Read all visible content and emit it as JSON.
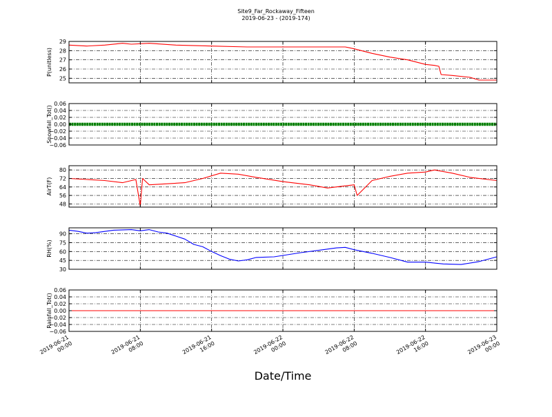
{
  "figure": {
    "title_line1": "Site9_Far_Rockaway_Fifteen",
    "title_line2": "2019-06-23 - (2019-174)",
    "xlabel": "Date/Time"
  },
  "chart_data": [
    {
      "type": "line",
      "ylabel": "P(unitless)",
      "ylim": [
        24.5,
        29.0
      ],
      "yticks": [
        25,
        26,
        27,
        28,
        29
      ],
      "ytick_labels": [
        "25",
        "26",
        "27",
        "28",
        "29"
      ],
      "grid": true,
      "series": [
        {
          "color": "#ff0000",
          "x": [
            "2019-06-21 00:00",
            "2019-06-21 02:00",
            "2019-06-21 04:00",
            "2019-06-21 06:00",
            "2019-06-21 07:00",
            "2019-06-21 09:00",
            "2019-06-21 12:00",
            "2019-06-21 16:00",
            "2019-06-21 20:00",
            "2019-06-22 00:00",
            "2019-06-22 04:00",
            "2019-06-22 07:00",
            "2019-06-22 07:30",
            "2019-06-22 08:00",
            "2019-06-22 10:00",
            "2019-06-22 12:00",
            "2019-06-22 14:00",
            "2019-06-22 16:00",
            "2019-06-22 17:00",
            "2019-06-22 17:30",
            "2019-06-22 17:45",
            "2019-06-22 19:00",
            "2019-06-22 21:00",
            "2019-06-22 22:00",
            "2019-06-23 00:00"
          ],
          "y": [
            28.6,
            28.5,
            28.6,
            28.8,
            28.7,
            28.8,
            28.6,
            28.5,
            28.4,
            28.4,
            28.4,
            28.4,
            28.3,
            28.2,
            27.7,
            27.3,
            27.0,
            26.5,
            26.4,
            26.3,
            25.4,
            25.3,
            25.1,
            24.8,
            24.8
          ]
        }
      ]
    },
    {
      "type": "line",
      "ylabel": "Snowfall_Tot()",
      "ylim": [
        -0.06,
        0.06
      ],
      "yticks": [
        -0.06,
        -0.04,
        -0.02,
        0.0,
        0.02,
        0.04,
        0.06
      ],
      "ytick_labels": [
        "−0.06",
        "−0.04",
        "−0.02",
        "0.00",
        "0.02",
        "0.04",
        "0.06"
      ],
      "grid": true,
      "series": [
        {
          "color": "#008000",
          "marker": "dot",
          "x": [
            "2019-06-21 00:00",
            "2019-06-23 00:00"
          ],
          "y": [
            0,
            0
          ]
        }
      ]
    },
    {
      "type": "line",
      "ylabel": "AirT(F)",
      "ylim": [
        45,
        84
      ],
      "yticks": [
        48,
        56,
        64,
        72,
        80
      ],
      "ytick_labels": [
        "48",
        "56",
        "64",
        "72",
        "80"
      ],
      "grid": true,
      "series": [
        {
          "color": "#ff0000",
          "x": [
            "2019-06-21 00:00",
            "2019-06-21 02:00",
            "2019-06-21 04:00",
            "2019-06-21 06:00",
            "2019-06-21 07:30",
            "2019-06-21 08:00",
            "2019-06-21 08:15",
            "2019-06-21 09:00",
            "2019-06-21 11:00",
            "2019-06-21 13:00",
            "2019-06-21 15:00",
            "2019-06-21 17:00",
            "2019-06-21 19:00",
            "2019-06-21 21:00",
            "2019-06-22 00:00",
            "2019-06-22 03:00",
            "2019-06-22 05:00",
            "2019-06-22 07:00",
            "2019-06-22 08:00",
            "2019-06-22 08:20",
            "2019-06-22 10:00",
            "2019-06-22 12:00",
            "2019-06-22 14:00",
            "2019-06-22 16:00",
            "2019-06-22 17:00",
            "2019-06-22 19:00",
            "2019-06-22 21:00",
            "2019-06-23 00:00"
          ],
          "y": [
            72,
            71,
            70,
            68,
            71,
            46,
            72,
            66,
            67,
            68,
            72,
            77,
            76,
            73,
            69,
            66,
            63,
            65,
            66,
            56,
            70,
            74,
            77,
            78,
            80,
            77,
            73,
            70
          ]
        }
      ]
    },
    {
      "type": "line",
      "ylabel": "RH(%)",
      "ylim": [
        30,
        100
      ],
      "yticks": [
        30,
        45,
        60,
        75,
        90
      ],
      "ytick_labels": [
        "30",
        "45",
        "60",
        "75",
        "90"
      ],
      "grid": true,
      "series": [
        {
          "color": "#0000ff",
          "x": [
            "2019-06-21 00:00",
            "2019-06-21 01:00",
            "2019-06-21 02:00",
            "2019-06-21 03:00",
            "2019-06-21 05:00",
            "2019-06-21 07:00",
            "2019-06-21 08:00",
            "2019-06-21 09:00",
            "2019-06-21 10:00",
            "2019-06-21 11:00",
            "2019-06-21 12:00",
            "2019-06-21 13:00",
            "2019-06-21 14:00",
            "2019-06-21 15:00",
            "2019-06-21 16:00",
            "2019-06-21 17:00",
            "2019-06-21 18:00",
            "2019-06-21 19:00",
            "2019-06-21 20:00",
            "2019-06-21 21:00",
            "2019-06-21 23:00",
            "2019-06-22 02:00",
            "2019-06-22 04:00",
            "2019-06-22 06:00",
            "2019-06-22 07:00",
            "2019-06-22 08:00",
            "2019-06-22 10:00",
            "2019-06-22 12:00",
            "2019-06-22 14:00",
            "2019-06-22 16:00",
            "2019-06-22 18:00",
            "2019-06-22 20:00",
            "2019-06-22 22:00",
            "2019-06-23 00:00"
          ],
          "y": [
            96,
            94,
            91,
            92,
            96,
            97,
            95,
            97,
            93,
            91,
            86,
            81,
            72,
            68,
            60,
            53,
            47,
            44,
            46,
            50,
            51,
            58,
            62,
            66,
            67,
            63,
            57,
            50,
            42,
            42,
            39,
            38,
            43,
            51
          ]
        }
      ]
    },
    {
      "type": "line",
      "ylabel": "Rainfall_Tot()",
      "ylim": [
        -0.06,
        0.06
      ],
      "yticks": [
        -0.06,
        -0.04,
        -0.02,
        0.0,
        0.02,
        0.04,
        0.06
      ],
      "ytick_labels": [
        "−0.06",
        "−0.04",
        "−0.02",
        "0.00",
        "0.02",
        "0.04",
        "0.06"
      ],
      "grid": true,
      "series": [
        {
          "color": "#ff0000",
          "x": [
            "2019-06-21 00:00",
            "2019-06-23 00:00"
          ],
          "y": [
            0,
            0
          ]
        }
      ]
    }
  ],
  "xaxis": {
    "xlim": [
      "2019-06-21 00:00",
      "2019-06-23 00:00"
    ],
    "ticks": [
      {
        "value": "2019-06-21 00:00",
        "line1": "2019-06-21",
        "line2": "00:00"
      },
      {
        "value": "2019-06-21 08:00",
        "line1": "2019-06-21",
        "line2": "08:00"
      },
      {
        "value": "2019-06-21 16:00",
        "line1": "2019-06-21",
        "line2": "16:00"
      },
      {
        "value": "2019-06-22 00:00",
        "line1": "2019-06-22",
        "line2": "00:00"
      },
      {
        "value": "2019-06-22 08:00",
        "line1": "2019-06-22",
        "line2": "08:00"
      },
      {
        "value": "2019-06-22 16:00",
        "line1": "2019-06-22",
        "line2": "16:00"
      },
      {
        "value": "2019-06-23 00:00",
        "line1": "2019-06-23",
        "line2": "00:00"
      }
    ]
  }
}
